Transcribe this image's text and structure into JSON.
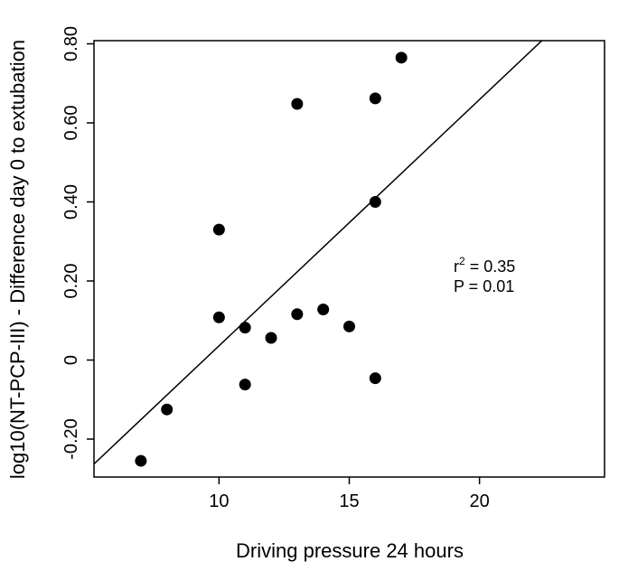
{
  "chart_data": {
    "type": "scatter",
    "title": "",
    "xlabel": "Driving pressure 24 hours",
    "ylabel": "log10(NT-PCP-III) - Difference day 0 to extubation",
    "xlim": [
      5.2,
      24.8
    ],
    "ylim": [
      -0.296,
      0.808
    ],
    "x_ticks": [
      10,
      15,
      20
    ],
    "x_tick_labels": [
      "10",
      "15",
      "20"
    ],
    "y_ticks": [
      -0.2,
      0,
      0.2,
      0.4,
      0.6,
      0.8
    ],
    "y_tick_labels": [
      "-0.20",
      "0",
      "0.20",
      "0.40",
      "0.60",
      "0.80"
    ],
    "grid": false,
    "points": [
      {
        "x": 7,
        "y": -0.255
      },
      {
        "x": 8,
        "y": -0.125
      },
      {
        "x": 10,
        "y": 0.33
      },
      {
        "x": 10,
        "y": 0.108
      },
      {
        "x": 11,
        "y": 0.082
      },
      {
        "x": 11,
        "y": -0.062
      },
      {
        "x": 12,
        "y": 0.056
      },
      {
        "x": 13,
        "y": 0.648
      },
      {
        "x": 13,
        "y": 0.116
      },
      {
        "x": 14,
        "y": 0.128
      },
      {
        "x": 15,
        "y": 0.085
      },
      {
        "x": 16,
        "y": 0.662
      },
      {
        "x": 16,
        "y": 0.4
      },
      {
        "x": 16,
        "y": -0.046
      },
      {
        "x": 17,
        "y": 0.765
      }
    ],
    "regression_line": {
      "slope": 0.0623,
      "intercept": -0.587
    },
    "annotation": {
      "r_base": "r",
      "r_exp": "2",
      "r_value": " = 0.35",
      "p_text": "P = 0.01"
    }
  }
}
